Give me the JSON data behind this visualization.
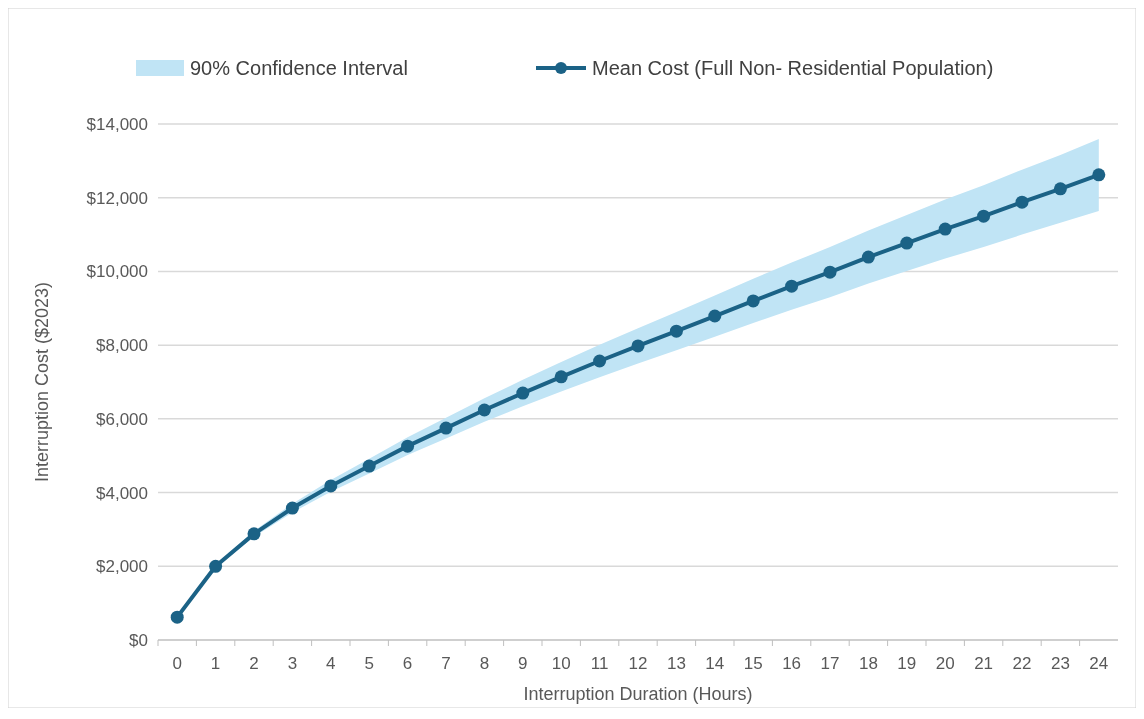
{
  "chart_data": {
    "type": "line",
    "xlabel": "Interruption Duration (Hours)",
    "ylabel": "Interruption Cost ($2023)",
    "x": [
      0,
      1,
      2,
      3,
      4,
      5,
      6,
      7,
      8,
      9,
      10,
      11,
      12,
      13,
      14,
      15,
      16,
      17,
      18,
      19,
      20,
      21,
      22,
      23,
      24
    ],
    "xlim": [
      -0.5,
      24.5
    ],
    "xticks": [
      0,
      1,
      2,
      3,
      4,
      5,
      6,
      7,
      8,
      9,
      10,
      11,
      12,
      13,
      14,
      15,
      16,
      17,
      18,
      19,
      20,
      21,
      22,
      23,
      24
    ],
    "ylim": [
      0,
      14000
    ],
    "yticks": [
      {
        "value": 0,
        "label": "$0"
      },
      {
        "value": 2000,
        "label": "$2,000"
      },
      {
        "value": 4000,
        "label": "$4,000"
      },
      {
        "value": 6000,
        "label": "$6,000"
      },
      {
        "value": 8000,
        "label": "$8,000"
      },
      {
        "value": 10000,
        "label": "$10,000"
      },
      {
        "value": 12000,
        "label": "$12,000"
      },
      {
        "value": 14000,
        "label": "$14,000"
      }
    ],
    "grid": "y",
    "legend": "top",
    "marker": "circle",
    "line_style": "solid",
    "annotations": [
      "90% Confidence Interval"
    ],
    "series": [
      {
        "name": "Mean Cost (Full Non- Residential Population)",
        "color": "#1b6286",
        "values": [
          620,
          2000,
          2880,
          3580,
          4180,
          4720,
          5260,
          5750,
          6240,
          6700,
          7140,
          7570,
          7980,
          8380,
          8790,
          9200,
          9600,
          9980,
          10390,
          10770,
          11150,
          11500,
          11880,
          12240,
          12620
        ],
        "lower": [
          620,
          1960,
          2800,
          3460,
          4020,
          4520,
          5020,
          5470,
          5920,
          6340,
          6740,
          7130,
          7500,
          7860,
          8230,
          8600,
          8960,
          9300,
          9670,
          10010,
          10350,
          10660,
          11000,
          11320,
          11640
        ],
        "upper": [
          620,
          2040,
          2960,
          3700,
          4340,
          4920,
          5500,
          6030,
          6560,
          7060,
          7540,
          8010,
          8460,
          8900,
          9350,
          9800,
          10240,
          10660,
          11110,
          11530,
          11950,
          12340,
          12760,
          13160,
          13590
        ]
      }
    ]
  }
}
